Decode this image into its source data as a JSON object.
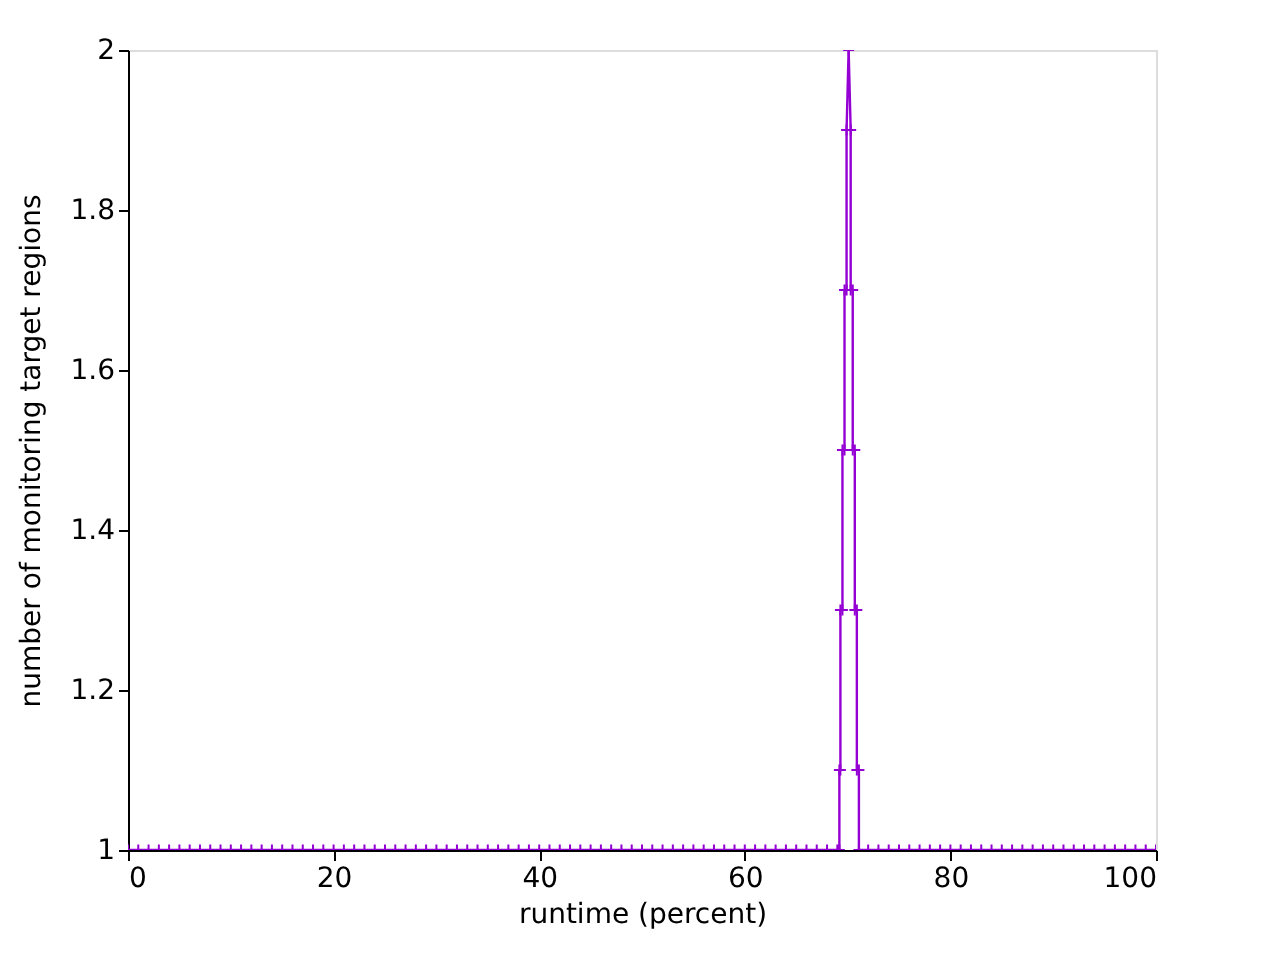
{
  "chart_data": {
    "type": "line",
    "xlabel": "runtime (percent)",
    "ylabel": "number of monitoring target regions",
    "xlim": [
      0,
      100
    ],
    "xticks": [
      0,
      20,
      40,
      60,
      80,
      100
    ],
    "ylim": [
      1,
      2
    ],
    "yticks": [
      1,
      1.2,
      1.4,
      1.6,
      1.8,
      2
    ],
    "marker": "cross",
    "line_style": "solid",
    "grid": false,
    "series": [
      {
        "color": "#9400d3",
        "x": [
          0,
          1,
          2,
          3,
          4,
          5,
          6,
          7,
          8,
          9,
          10,
          11,
          12,
          13,
          14,
          15,
          16,
          17,
          18,
          19,
          20,
          21,
          22,
          23,
          24,
          25,
          26,
          27,
          28,
          29,
          30,
          31,
          32,
          33,
          34,
          35,
          36,
          37,
          38,
          39,
          40,
          41,
          42,
          43,
          44,
          45,
          46,
          47,
          48,
          49,
          50,
          51,
          52,
          53,
          54,
          55,
          56,
          57,
          58,
          59,
          60,
          61,
          62,
          63,
          64,
          65,
          66,
          67,
          68,
          69,
          69.2,
          69.2,
          69.3,
          69.3,
          69.5,
          69.5,
          69.7,
          69.7,
          69.9,
          69.9,
          70.1,
          70.3,
          70.3,
          70.5,
          70.5,
          70.7,
          70.7,
          70.9,
          70.9,
          71.1,
          71.1,
          72,
          73,
          74,
          75,
          76,
          77,
          78,
          79,
          80,
          81,
          82,
          83,
          84,
          85,
          86,
          87,
          88,
          89,
          90,
          91,
          92,
          93,
          94,
          95,
          96,
          97,
          98,
          99,
          100
        ],
        "values": [
          1,
          1,
          1,
          1,
          1,
          1,
          1,
          1,
          1,
          1,
          1,
          1,
          1,
          1,
          1,
          1,
          1,
          1,
          1,
          1,
          1,
          1,
          1,
          1,
          1,
          1,
          1,
          1,
          1,
          1,
          1,
          1,
          1,
          1,
          1,
          1,
          1,
          1,
          1,
          1,
          1,
          1,
          1,
          1,
          1,
          1,
          1,
          1,
          1,
          1,
          1,
          1,
          1,
          1,
          1,
          1,
          1,
          1,
          1,
          1,
          1,
          1,
          1,
          1,
          1,
          1,
          1,
          1,
          1,
          1,
          1,
          1.1,
          1.1,
          1.3,
          1.3,
          1.5,
          1.5,
          1.7,
          1.7,
          1.9,
          2,
          1.9,
          1.7,
          1.7,
          1.5,
          1.5,
          1.3,
          1.3,
          1.1,
          1.1,
          1,
          1,
          1,
          1,
          1,
          1,
          1,
          1,
          1,
          1,
          1,
          1,
          1,
          1,
          1,
          1,
          1,
          1,
          1,
          1,
          1,
          1,
          1,
          1,
          1,
          1,
          1,
          1,
          1,
          1
        ]
      }
    ]
  }
}
